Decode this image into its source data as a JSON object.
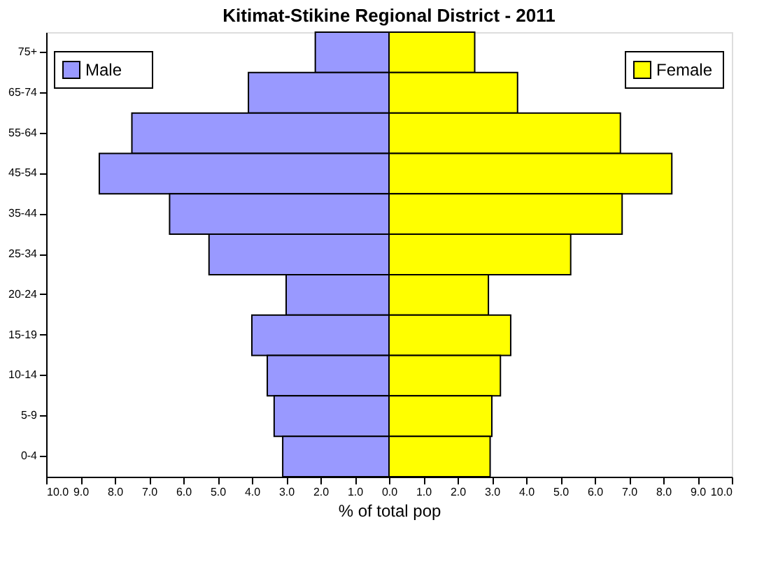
{
  "chart_data": {
    "type": "bar",
    "orientation": "horizontal",
    "stacked": true,
    "title": "Kitimat-Stikine Regional District - 2011",
    "xlabel": "% of total pop",
    "categories": [
      "75+",
      "65-74",
      "55-64",
      "45-54",
      "35-44",
      "25-34",
      "20-24",
      "15-19",
      "10-14",
      "5-9",
      "0-4"
    ],
    "series": [
      {
        "name": "Male",
        "color": "#9999ff",
        "values": [
          -2.15,
          -4.1,
          -7.5,
          -8.45,
          -6.4,
          -5.25,
          -3.0,
          -4.0,
          -3.55,
          -3.35,
          -3.1
        ]
      },
      {
        "name": "Female",
        "color": "#ffff00",
        "values": [
          2.5,
          3.75,
          6.75,
          8.25,
          6.8,
          5.3,
          2.9,
          3.55,
          3.25,
          3.0,
          2.95
        ]
      }
    ],
    "xlim": [
      -10,
      10
    ],
    "xticks": [
      {
        "value": -10,
        "label": "10.0"
      },
      {
        "value": -9,
        "label": "9.0"
      },
      {
        "value": -8,
        "label": "8.0"
      },
      {
        "value": -7,
        "label": "7.0"
      },
      {
        "value": -6,
        "label": "6.0"
      },
      {
        "value": -5,
        "label": "5.0"
      },
      {
        "value": -4,
        "label": "4.0"
      },
      {
        "value": -3,
        "label": "3.0"
      },
      {
        "value": -2,
        "label": "2.0"
      },
      {
        "value": -1,
        "label": "1.0"
      },
      {
        "value": 0,
        "label": "0.0"
      },
      {
        "value": 1,
        "label": "1.0"
      },
      {
        "value": 2,
        "label": "2.0"
      },
      {
        "value": 3,
        "label": "3.0"
      },
      {
        "value": 4,
        "label": "4.0"
      },
      {
        "value": 5,
        "label": "5.0"
      },
      {
        "value": 6,
        "label": "6.0"
      },
      {
        "value": 7,
        "label": "7.0"
      },
      {
        "value": 8,
        "label": "8.0"
      },
      {
        "value": 9,
        "label": "9.0"
      },
      {
        "value": 10,
        "label": "10.0"
      }
    ],
    "grid": false,
    "legend": "top"
  }
}
